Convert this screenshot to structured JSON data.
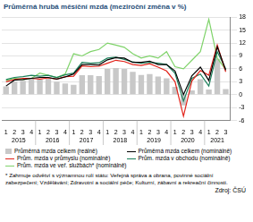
{
  "chart_data": {
    "type": "bar",
    "title": "Průměrná hrubá měsíční mzda (meziroční změna v %)",
    "categories": [
      "1",
      "2",
      "3",
      "4",
      "1",
      "2",
      "3",
      "4",
      "1",
      "2",
      "3",
      "4",
      "1",
      "2",
      "3",
      "4",
      "1",
      "2",
      "3",
      "4",
      "1",
      "2",
      "3",
      "4",
      "1",
      "2",
      "3"
    ],
    "years": [
      "2015",
      "2016",
      "2017",
      "2018",
      "2019",
      "2020",
      "2021"
    ],
    "series": [
      {
        "name": "Průměrná mzda celkem (reálně)",
        "type": "bar",
        "color": "#c8c8c8",
        "values": [
          1.9,
          3.0,
          3.2,
          3.8,
          3.6,
          3.8,
          3.0,
          2.6,
          2.3,
          4.5,
          4.5,
          4.3,
          6.0,
          6.2,
          6.0,
          5.3,
          4.6,
          4.8,
          4.2,
          3.8,
          1.8,
          -2.5,
          1.0,
          3.6,
          1.2,
          8.3,
          1.3
        ]
      },
      {
        "name": "Průměrná mzda celkem (nominálně)",
        "type": "line",
        "color": "#000000",
        "values": [
          2.0,
          3.4,
          3.5,
          3.8,
          4.0,
          4.0,
          3.6,
          4.1,
          4.8,
          7.0,
          7.0,
          6.9,
          8.1,
          8.6,
          8.5,
          7.5,
          7.5,
          7.8,
          7.0,
          7.0,
          5.5,
          0.0,
          4.4,
          6.4,
          3.3,
          11.1,
          5.7
        ]
      },
      {
        "name": "Prům. mzda v průmyslu (nominálně)",
        "type": "line",
        "color": "#e2231a",
        "values": [
          3.0,
          3.5,
          3.8,
          3.8,
          3.6,
          3.9,
          3.6,
          4.2,
          4.3,
          6.7,
          6.5,
          6.6,
          7.3,
          8.0,
          7.7,
          7.0,
          6.8,
          7.2,
          6.4,
          5.5,
          3.0,
          -5.0,
          3.2,
          5.6,
          4.5,
          11.5,
          5.3
        ]
      },
      {
        "name": "Prům. mzda v obchodu (nominálně)",
        "type": "line",
        "color": "#1a7f5a",
        "values": [
          3.5,
          4.0,
          4.2,
          4.5,
          4.3,
          4.5,
          4.0,
          4.6,
          5.0,
          7.5,
          7.3,
          7.4,
          8.5,
          8.7,
          8.2,
          7.6,
          7.3,
          7.5,
          7.3,
          7.0,
          5.0,
          -1.5,
          3.8,
          4.8,
          2.0,
          10.0,
          6.0
        ]
      },
      {
        "name": "Prům. mzda ve veř. službách* (nominálně)",
        "type": "line",
        "color": "#7fd36a",
        "values": [
          3.3,
          3.8,
          3.5,
          3.8,
          5.0,
          4.5,
          4.0,
          4.8,
          9.5,
          9.0,
          10.0,
          10.5,
          12.0,
          11.5,
          11.0,
          9.5,
          8.5,
          9.0,
          8.5,
          10.0,
          6.5,
          6.0,
          8.0,
          10.0,
          17.5,
          8.5,
          5.8
        ]
      }
    ],
    "ylim": [
      -6,
      18
    ],
    "yticks": [
      -6,
      -3,
      0,
      3,
      6,
      9,
      12,
      15,
      18
    ],
    "grid": true,
    "footnote": "* Zahrnuje odvětví s významnou rolí státu: Veřejná správa a obrana, povinné sociální zabezpečení; Vzdělávání; Zdravotní a sociální péče; Kulturní, zábavní a rekreační činnosti.",
    "source": "Zdroj: ČSÚ"
  }
}
